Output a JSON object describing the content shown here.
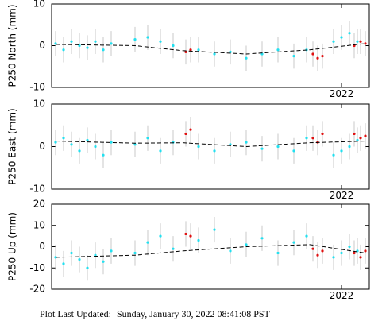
{
  "chart_data": [
    {
      "type": "scatter",
      "ylabel": "P250 North (mm)",
      "xlim": [
        2020.175,
        2022.175
      ],
      "ylim": [
        -10,
        10
      ],
      "yticks": [
        -10,
        0,
        10
      ],
      "xticks": [
        2022
      ],
      "series": [
        {
          "type": "scatter",
          "color": "#22e0f0",
          "error": 3,
          "x": [
            2020.2,
            2020.25,
            2020.3,
            2020.35,
            2020.4,
            2020.45,
            2020.5,
            2020.55,
            2020.7,
            2020.78,
            2020.86,
            2020.94,
            2021.1,
            2021.2,
            2021.3,
            2021.4,
            2021.5,
            2021.6,
            2021.7,
            2021.78,
            2021.95,
            2022.0,
            2022.05,
            2022.1
          ],
          "values": [
            0.5,
            -1,
            1,
            0,
            -0.5,
            1,
            -1,
            0.5,
            1.5,
            2,
            1,
            0,
            -1,
            -2,
            -1.5,
            -3,
            -2,
            -1,
            -2.5,
            -1,
            1,
            2,
            3,
            1
          ]
        },
        {
          "type": "scatter",
          "color": "#e01010",
          "error": 3,
          "x": [
            2021.02,
            2021.05,
            2021.82,
            2021.85,
            2021.88,
            2022.08,
            2022.12,
            2022.15
          ],
          "values": [
            -1.5,
            -1,
            -2,
            -3,
            -2.5,
            0,
            1,
            0.5
          ]
        },
        {
          "type": "line",
          "color": "#000000",
          "dashed": true,
          "x": [
            2020.2,
            2020.7,
            2021.0,
            2021.4,
            2021.8,
            2022.15
          ],
          "values": [
            0.3,
            0,
            -1.2,
            -2,
            -1,
            0.5
          ]
        }
      ]
    },
    {
      "type": "scatter",
      "ylabel": "P250 East (mm)",
      "xlim": [
        2020.175,
        2022.175
      ],
      "ylim": [
        -10,
        10
      ],
      "yticks": [
        -10,
        0,
        10
      ],
      "xticks": [
        2022
      ],
      "series": [
        {
          "type": "scatter",
          "color": "#22e0f0",
          "error": 3,
          "x": [
            2020.2,
            2020.25,
            2020.3,
            2020.35,
            2020.4,
            2020.45,
            2020.5,
            2020.55,
            2020.7,
            2020.78,
            2020.86,
            2020.94,
            2021.1,
            2021.2,
            2021.3,
            2021.4,
            2021.5,
            2021.6,
            2021.7,
            2021.78,
            2021.95,
            2022.0,
            2022.05,
            2022.1
          ],
          "values": [
            1,
            2,
            0.5,
            -1,
            1.5,
            0,
            -2,
            1,
            0.5,
            2,
            -1,
            1,
            0,
            -1,
            0.5,
            1,
            -0.5,
            0,
            -1,
            2,
            -2,
            -1,
            0,
            1.5
          ]
        },
        {
          "type": "scatter",
          "color": "#e01010",
          "error": 3,
          "x": [
            2021.02,
            2021.05,
            2021.82,
            2021.85,
            2021.88,
            2022.08,
            2022.12,
            2022.15
          ],
          "values": [
            3,
            4,
            2,
            1,
            3,
            3,
            2,
            2.5
          ]
        },
        {
          "type": "line",
          "color": "#000000",
          "dashed": true,
          "x": [
            2020.2,
            2020.7,
            2021.0,
            2021.4,
            2021.8,
            2022.15
          ],
          "values": [
            1.3,
            0.8,
            0.9,
            0,
            0.9,
            1.3
          ]
        }
      ]
    },
    {
      "type": "scatter",
      "ylabel": "P250 Up (mm)",
      "xlim": [
        2020.175,
        2022.175
      ],
      "ylim": [
        -20,
        20
      ],
      "yticks": [
        -20,
        -10,
        0,
        10,
        20
      ],
      "xticks": [
        2022
      ],
      "series": [
        {
          "type": "scatter",
          "color": "#22e0f0",
          "error": 6,
          "x": [
            2020.2,
            2020.25,
            2020.3,
            2020.35,
            2020.4,
            2020.45,
            2020.5,
            2020.55,
            2020.7,
            2020.78,
            2020.86,
            2020.94,
            2021.1,
            2021.2,
            2021.3,
            2021.4,
            2021.5,
            2021.6,
            2021.7,
            2021.78,
            2021.95,
            2022.0,
            2022.05,
            2022.1
          ],
          "values": [
            -5,
            -8,
            -3,
            -6,
            -10,
            -4,
            -7,
            -2,
            -3,
            2,
            5,
            -1,
            3,
            8,
            -2,
            1,
            4,
            -3,
            2,
            5,
            -5,
            -3,
            0,
            -2
          ]
        },
        {
          "type": "scatter",
          "color": "#e01010",
          "error": 6,
          "x": [
            2021.02,
            2021.05,
            2021.82,
            2021.85,
            2021.88,
            2022.08,
            2022.12,
            2022.15
          ],
          "values": [
            6,
            5,
            -1,
            -4,
            -2,
            -3,
            -5,
            -2
          ]
        },
        {
          "type": "line",
          "color": "#000000",
          "dashed": true,
          "x": [
            2020.2,
            2020.7,
            2021.0,
            2021.4,
            2021.8,
            2022.15
          ],
          "values": [
            -5,
            -4,
            -2,
            0,
            1,
            -3
          ]
        }
      ]
    }
  ],
  "footer": {
    "label": "Plot Last Updated:",
    "timestamp": "Sunday, January 30, 2022 08:41:08 PST"
  }
}
